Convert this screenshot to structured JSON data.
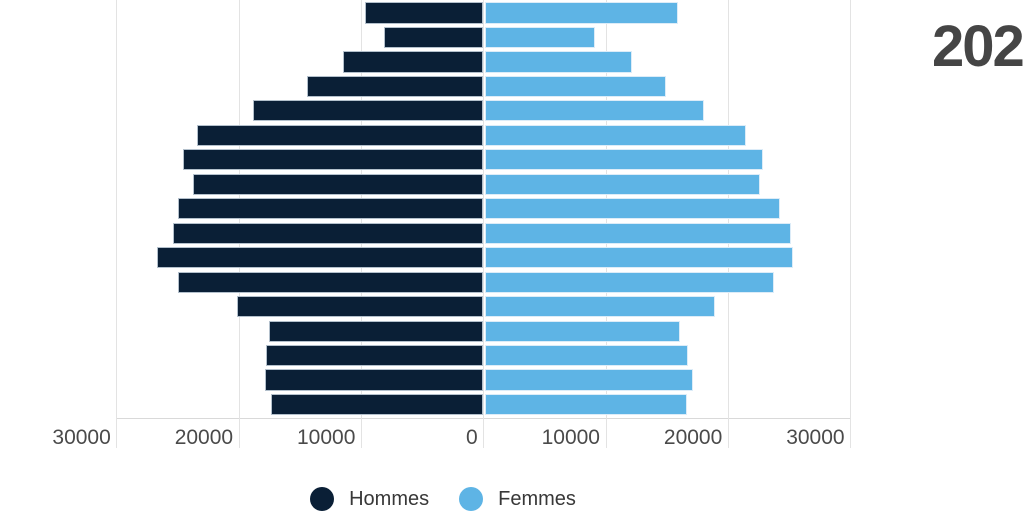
{
  "header": {
    "year_label": "202"
  },
  "legend": {
    "items": [
      {
        "label": "Hommes",
        "color": "#0a1f36"
      },
      {
        "label": "Femmes",
        "color": "#5eb4e5"
      }
    ]
  },
  "chart_data": {
    "type": "bar",
    "variant": "population-pyramid",
    "orientation": "horizontal",
    "title": "",
    "xlabel": "",
    "ylabel": "",
    "grid": true,
    "legend_position": "bottom-center",
    "category_axis_labels_visible": false,
    "rows_top_to_bottom": 17,
    "x_axis": {
      "range_abs": [
        0,
        30000
      ],
      "tick_values": [
        -30000,
        -20000,
        -10000,
        0,
        10000,
        20000,
        30000
      ],
      "tick_labels": [
        "30000",
        "20000",
        "10000",
        "0",
        "10000",
        "20000",
        "30000"
      ]
    },
    "series": [
      {
        "name": "Hommes",
        "side": "left",
        "color": "#0a1f36",
        "values": [
          9600,
          8100,
          11400,
          14400,
          18800,
          23400,
          24500,
          23700,
          24900,
          25300,
          26600,
          24900,
          20100,
          17500,
          17700,
          17800,
          17300
        ]
      },
      {
        "name": "Femmes",
        "side": "right",
        "color": "#5eb4e5",
        "values": [
          15800,
          9000,
          12000,
          14800,
          17900,
          21300,
          22700,
          22500,
          24100,
          25000,
          25200,
          23600,
          18800,
          15900,
          16600,
          17000,
          16500
        ]
      }
    ]
  }
}
